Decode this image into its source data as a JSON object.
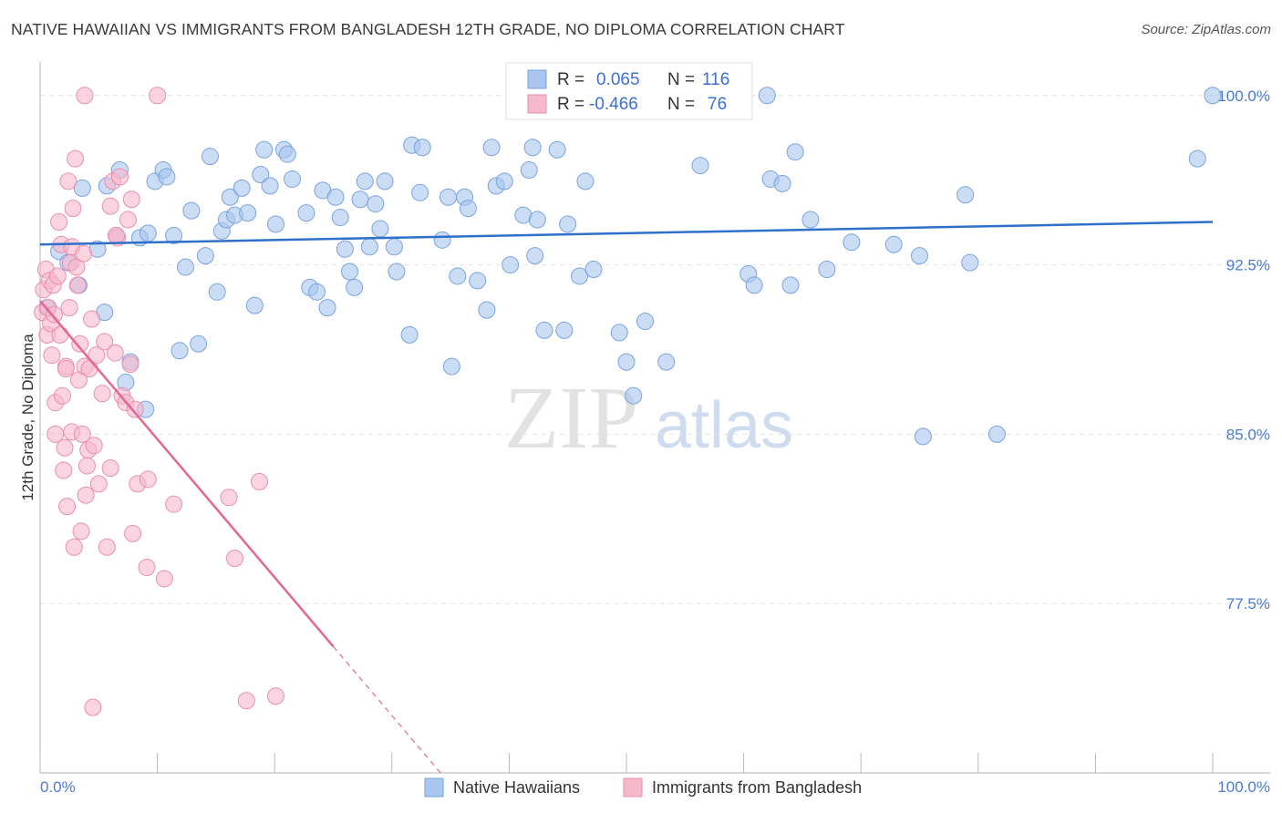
{
  "header": {
    "title": "NATIVE HAWAIIAN VS IMMIGRANTS FROM BANGLADESH 12TH GRADE, NO DIPLOMA CORRELATION CHART",
    "source": "Source: ZipAtlas.com"
  },
  "watermark": {
    "zip": "ZIP",
    "atlas": "atlas"
  },
  "colors": {
    "blue_fill": "#a9c6ee",
    "blue_stroke": "#7aa3dd",
    "blue_line": "#2e6fc9",
    "pink_fill": "#f6b8cb",
    "pink_stroke": "#ea8fac",
    "pink_line": "#e26791",
    "tick_text": "#4a7bd0",
    "grid": "#e3e3e3"
  },
  "legend_top": {
    "rows": [
      {
        "r_label": "R =",
        "r_value": "0.065",
        "n_label": "N =",
        "n_value": "116"
      },
      {
        "r_label": "R =",
        "r_value": "-0.466",
        "n_label": "N =",
        "n_value": "76"
      }
    ]
  },
  "legend_bottom": [
    "Native Hawaiians",
    "Immigrants from Bangladesh"
  ],
  "chart_data": {
    "type": "scatter",
    "title": "NATIVE HAWAIIAN VS IMMIGRANTS FROM BANGLADESH 12TH GRADE, NO DIPLOMA CORRELATION CHART",
    "xlabel": "",
    "ylabel": "12th Grade, No Diploma",
    "xlim": [
      0,
      100
    ],
    "ylim": [
      70,
      101
    ],
    "x_tick_labels": [
      "0.0%",
      "100.0%"
    ],
    "y_ticks": [
      77.5,
      85.0,
      92.5,
      100.0
    ],
    "y_tick_labels": [
      "77.5%",
      "85.0%",
      "92.5%",
      "100.0%"
    ],
    "grid": true,
    "legend_position": "top-center",
    "series": [
      {
        "name": "Native Hawaiians",
        "color": "#a9c6ee",
        "trend": {
          "x": [
            0,
            100
          ],
          "y": [
            93.4,
            94.4
          ]
        },
        "points": [
          [
            0.6,
            90.6
          ],
          [
            1.6,
            93.1
          ],
          [
            2.4,
            92.6
          ],
          [
            3.3,
            91.6
          ],
          [
            3.6,
            95.9
          ],
          [
            4.9,
            93.2
          ],
          [
            5.5,
            90.4
          ],
          [
            5.7,
            96.0
          ],
          [
            6.5,
            93.8
          ],
          [
            6.8,
            96.7
          ],
          [
            7.3,
            87.3
          ],
          [
            7.7,
            88.2
          ],
          [
            8.5,
            93.7
          ],
          [
            9.0,
            86.1
          ],
          [
            9.2,
            93.9
          ],
          [
            9.8,
            96.2
          ],
          [
            10.5,
            96.7
          ],
          [
            10.8,
            96.4
          ],
          [
            11.4,
            93.8
          ],
          [
            11.9,
            88.7
          ],
          [
            12.4,
            92.4
          ],
          [
            12.9,
            94.9
          ],
          [
            13.5,
            89.0
          ],
          [
            14.1,
            92.9
          ],
          [
            14.5,
            97.3
          ],
          [
            15.1,
            91.3
          ],
          [
            15.5,
            94.0
          ],
          [
            15.9,
            94.5
          ],
          [
            16.2,
            95.5
          ],
          [
            16.6,
            94.7
          ],
          [
            17.2,
            95.9
          ],
          [
            17.7,
            94.8
          ],
          [
            18.3,
            90.7
          ],
          [
            18.8,
            96.5
          ],
          [
            19.1,
            97.6
          ],
          [
            19.6,
            96.0
          ],
          [
            20.1,
            94.3
          ],
          [
            20.8,
            97.6
          ],
          [
            21.1,
            97.4
          ],
          [
            21.5,
            96.3
          ],
          [
            22.7,
            94.8
          ],
          [
            23.0,
            91.5
          ],
          [
            23.6,
            91.3
          ],
          [
            24.1,
            95.8
          ],
          [
            24.5,
            90.6
          ],
          [
            25.2,
            95.5
          ],
          [
            25.6,
            94.6
          ],
          [
            26.0,
            93.2
          ],
          [
            26.4,
            92.2
          ],
          [
            26.8,
            91.5
          ],
          [
            27.3,
            95.4
          ],
          [
            27.7,
            96.2
          ],
          [
            28.1,
            93.3
          ],
          [
            28.6,
            95.2
          ],
          [
            29.0,
            94.1
          ],
          [
            29.4,
            96.2
          ],
          [
            30.2,
            93.3
          ],
          [
            30.4,
            92.2
          ],
          [
            31.5,
            89.4
          ],
          [
            31.7,
            97.8
          ],
          [
            32.4,
            95.7
          ],
          [
            32.6,
            97.7
          ],
          [
            34.3,
            93.6
          ],
          [
            34.8,
            95.5
          ],
          [
            35.1,
            88.0
          ],
          [
            35.6,
            92.0
          ],
          [
            36.2,
            95.5
          ],
          [
            36.5,
            95.0
          ],
          [
            37.3,
            91.8
          ],
          [
            38.1,
            90.5
          ],
          [
            38.5,
            97.7
          ],
          [
            38.9,
            96.0
          ],
          [
            39.6,
            96.2
          ],
          [
            40.1,
            92.5
          ],
          [
            41.2,
            94.7
          ],
          [
            41.7,
            96.7
          ],
          [
            42.0,
            97.7
          ],
          [
            42.2,
            92.9
          ],
          [
            42.4,
            94.5
          ],
          [
            43.0,
            89.6
          ],
          [
            44.1,
            97.6
          ],
          [
            44.7,
            89.6
          ],
          [
            45.0,
            94.3
          ],
          [
            46.0,
            92.0
          ],
          [
            46.5,
            96.2
          ],
          [
            47.2,
            92.3
          ],
          [
            49.4,
            89.5
          ],
          [
            50.0,
            88.2
          ],
          [
            50.6,
            86.7
          ],
          [
            51.6,
            90.0
          ],
          [
            53.4,
            88.2
          ],
          [
            56.3,
            96.9
          ],
          [
            60.4,
            92.1
          ],
          [
            60.9,
            91.6
          ],
          [
            62.3,
            96.3
          ],
          [
            63.3,
            96.1
          ],
          [
            64.0,
            91.6
          ],
          [
            64.4,
            97.5
          ],
          [
            65.7,
            94.5
          ],
          [
            67.1,
            92.3
          ],
          [
            69.2,
            93.5
          ],
          [
            72.8,
            93.4
          ],
          [
            75.0,
            92.9
          ],
          [
            75.3,
            84.9
          ],
          [
            78.9,
            95.6
          ],
          [
            79.3,
            92.6
          ],
          [
            81.6,
            85.0
          ],
          [
            98.7,
            97.2
          ],
          [
            100.0,
            100.0
          ],
          [
            41.0,
            100.0
          ],
          [
            60.0,
            100.0
          ],
          [
            62.0,
            100.0
          ],
          [
            52.0,
            100.0
          ]
        ]
      },
      {
        "name": "Immigrants from Bangladesh",
        "color": "#f6b8cb",
        "trend": {
          "x": [
            0,
            25
          ],
          "y": [
            90.9,
            75.6
          ]
        },
        "points": [
          [
            0.2,
            90.4
          ],
          [
            0.3,
            91.4
          ],
          [
            0.5,
            92.3
          ],
          [
            0.6,
            89.4
          ],
          [
            0.7,
            90.6
          ],
          [
            0.8,
            91.8
          ],
          [
            0.9,
            89.9
          ],
          [
            1.0,
            88.5
          ],
          [
            1.1,
            91.6
          ],
          [
            1.2,
            90.3
          ],
          [
            1.3,
            86.4
          ],
          [
            1.3,
            85.0
          ],
          [
            1.5,
            92.0
          ],
          [
            1.6,
            94.4
          ],
          [
            1.7,
            89.4
          ],
          [
            1.8,
            93.4
          ],
          [
            1.9,
            86.7
          ],
          [
            2.0,
            83.4
          ],
          [
            2.1,
            84.4
          ],
          [
            2.2,
            88.0
          ],
          [
            2.3,
            81.8
          ],
          [
            2.4,
            96.2
          ],
          [
            2.5,
            90.6
          ],
          [
            2.6,
            92.6
          ],
          [
            2.7,
            93.3
          ],
          [
            2.7,
            85.1
          ],
          [
            2.8,
            95.0
          ],
          [
            2.9,
            80.0
          ],
          [
            3.0,
            97.2
          ],
          [
            3.1,
            92.4
          ],
          [
            3.2,
            91.6
          ],
          [
            3.3,
            87.4
          ],
          [
            3.4,
            89.0
          ],
          [
            3.5,
            80.7
          ],
          [
            3.6,
            85.0
          ],
          [
            3.7,
            93.0
          ],
          [
            3.8,
            88.0
          ],
          [
            3.9,
            82.3
          ],
          [
            4.0,
            83.6
          ],
          [
            4.1,
            84.3
          ],
          [
            4.2,
            87.9
          ],
          [
            4.4,
            90.1
          ],
          [
            4.6,
            84.5
          ],
          [
            4.8,
            88.5
          ],
          [
            5.0,
            82.8
          ],
          [
            5.3,
            86.8
          ],
          [
            5.5,
            89.1
          ],
          [
            5.7,
            80.0
          ],
          [
            6.0,
            95.1
          ],
          [
            6.0,
            83.5
          ],
          [
            6.2,
            96.2
          ],
          [
            6.4,
            88.6
          ],
          [
            6.6,
            93.7
          ],
          [
            6.8,
            96.4
          ],
          [
            7.0,
            86.7
          ],
          [
            7.3,
            86.4
          ],
          [
            7.5,
            94.5
          ],
          [
            7.7,
            88.1
          ],
          [
            7.8,
            95.4
          ],
          [
            7.9,
            80.6
          ],
          [
            8.1,
            86.1
          ],
          [
            8.3,
            82.8
          ],
          [
            9.1,
            79.1
          ],
          [
            9.2,
            83.0
          ],
          [
            10.6,
            78.6
          ],
          [
            11.4,
            81.9
          ],
          [
            16.1,
            82.2
          ],
          [
            16.6,
            79.5
          ],
          [
            17.6,
            73.2
          ],
          [
            18.7,
            82.9
          ],
          [
            20.1,
            73.4
          ],
          [
            4.5,
            72.9
          ],
          [
            3.8,
            100.0
          ],
          [
            10.0,
            100.0
          ],
          [
            2.2,
            87.9
          ],
          [
            6.5,
            93.8
          ]
        ]
      }
    ]
  }
}
